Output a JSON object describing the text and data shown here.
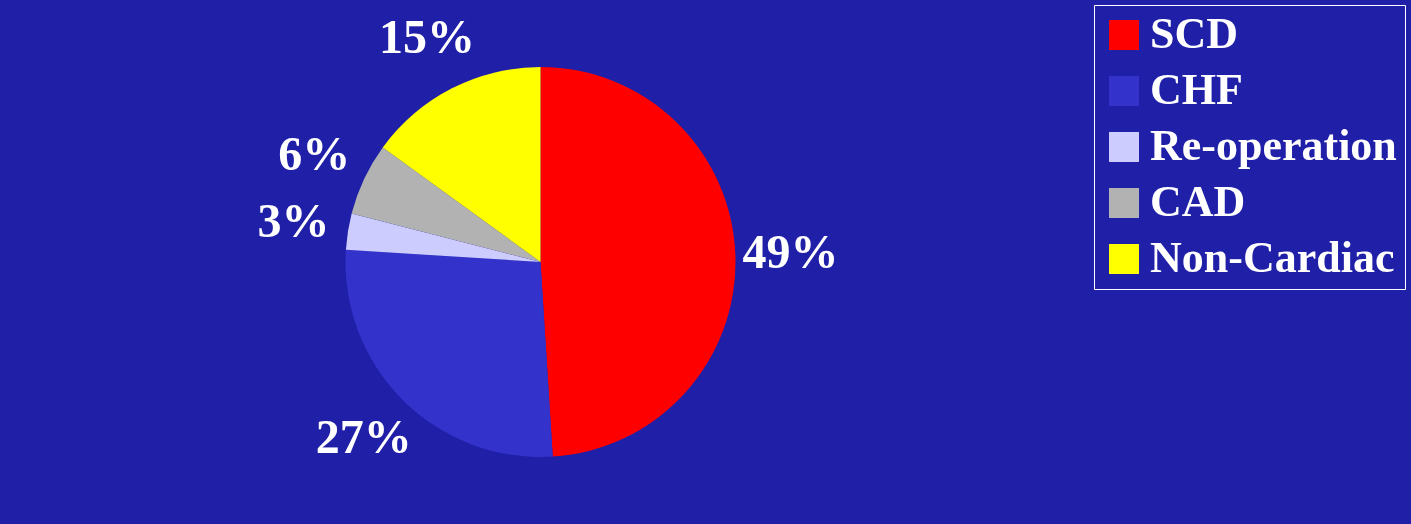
{
  "chart_data": {
    "type": "pie",
    "categories": [
      "SCD",
      "CHF",
      "Re-operation",
      "CAD",
      "Non-Cardiac"
    ],
    "values": [
      49,
      27,
      3,
      6,
      15
    ],
    "colors": [
      "#ff0000",
      "#3333cc",
      "#ccccff",
      "#b2b2b2",
      "#ffff00"
    ],
    "value_labels": [
      "49%",
      "27%",
      "3%",
      "6%",
      "15%"
    ],
    "legend": "right"
  }
}
